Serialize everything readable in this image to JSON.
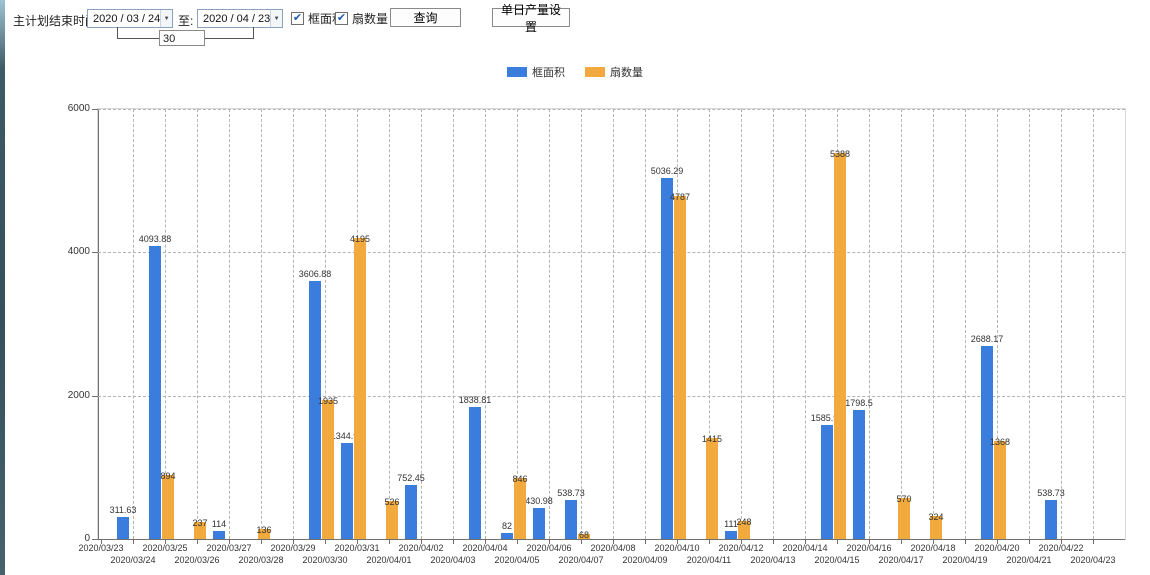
{
  "toolbar": {
    "label_plan_end": "主计划结束时间:",
    "date_from": "2020 / 03 / 24",
    "to_label": "至:",
    "date_to": "2020 / 04 / 23",
    "days_value": "30",
    "checkbox_frame_area": "框面积",
    "checkbox_fan_count": "扇数量",
    "query_button": "查询",
    "daily_output_button": "单日产量设置"
  },
  "icons": {
    "check": "✔",
    "dropdown": "▼"
  },
  "colors": {
    "series_blue": "#3B7DDD",
    "series_orange": "#F2A93D"
  },
  "chart_data": {
    "type": "bar",
    "title": "",
    "xlabel": "",
    "ylabel": "",
    "ylim": [
      0,
      6000
    ],
    "yticks": [
      0,
      2000,
      4000,
      6000
    ],
    "grid": true,
    "legend_position": "top",
    "categories": [
      "2020/03/23",
      "2020/03/24",
      "2020/03/25",
      "2020/03/26",
      "2020/03/27",
      "2020/03/28",
      "2020/03/29",
      "2020/03/30",
      "2020/03/31",
      "2020/04/01",
      "2020/04/02",
      "2020/04/03",
      "2020/04/04",
      "2020/04/05",
      "2020/04/06",
      "2020/04/07",
      "2020/04/08",
      "2020/04/09",
      "2020/04/10",
      "2020/04/11",
      "2020/04/12",
      "2020/04/13",
      "2020/04/14",
      "2020/04/15",
      "2020/04/16",
      "2020/04/17",
      "2020/04/18",
      "2020/04/19",
      "2020/04/20",
      "2020/04/21",
      "2020/04/22",
      "2020/04/23"
    ],
    "series": [
      {
        "name": "框面积",
        "color": "#3B7DDD",
        "values": [
          null,
          311.63,
          4093.88,
          null,
          114,
          null,
          null,
          3606.88,
          1344.95,
          null,
          752.45,
          null,
          1838.81,
          82,
          430.98,
          538.73,
          null,
          null,
          5036.29,
          null,
          111,
          null,
          null,
          1585.96,
          1798.5,
          null,
          null,
          null,
          2688.17,
          null,
          538.73,
          null
        ]
      },
      {
        "name": "扇数量",
        "color": "#F2A93D",
        "values": [
          null,
          null,
          894,
          237,
          null,
          136,
          null,
          1935,
          4195,
          526,
          null,
          null,
          null,
          846,
          null,
          68,
          null,
          null,
          4787,
          1415,
          248,
          null,
          null,
          5388,
          null,
          570,
          324,
          null,
          1368,
          null,
          null,
          null
        ]
      }
    ]
  }
}
